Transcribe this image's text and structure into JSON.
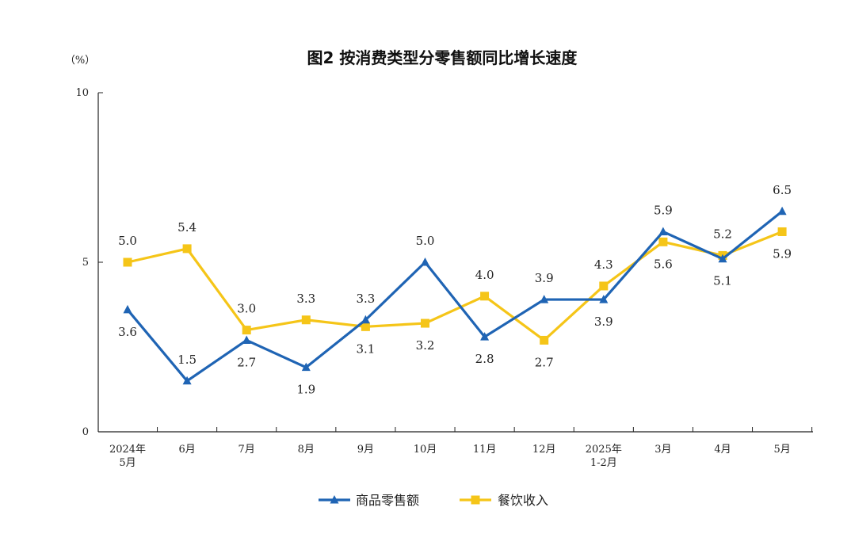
{
  "chart_data": {
    "type": "line",
    "title": "图2  按消费类型分零售额同比增长速度",
    "unit": "（%）",
    "ylim": [
      0,
      10
    ],
    "yticks": [
      "0",
      "5",
      "10"
    ],
    "grid": false,
    "legend_position": "bottom",
    "categories": [
      [
        "2024年",
        "5月"
      ],
      [
        "6月"
      ],
      [
        "7月"
      ],
      [
        "8月"
      ],
      [
        "9月"
      ],
      [
        "10月"
      ],
      [
        "11月"
      ],
      [
        "12月"
      ],
      [
        "2025年",
        "1-2月"
      ],
      [
        "3月"
      ],
      [
        "4月"
      ],
      [
        "5月"
      ]
    ],
    "series": [
      {
        "name": "商品零售额",
        "color": "#1f64b4",
        "marker": "triangle",
        "values": [
          3.6,
          1.5,
          2.7,
          1.9,
          3.3,
          5.0,
          2.8,
          3.9,
          3.9,
          5.9,
          5.1,
          6.5
        ],
        "labels": [
          "3.6",
          "1.5",
          "2.7",
          "1.9",
          "3.3",
          "5.0",
          "2.8",
          "3.9",
          "3.9",
          "5.9",
          "5.1",
          "6.5"
        ]
      },
      {
        "name": "餐饮收入",
        "color": "#f5c518",
        "marker": "square",
        "values": [
          5.0,
          5.4,
          3.0,
          3.3,
          3.1,
          3.2,
          4.0,
          2.7,
          4.3,
          5.6,
          5.2,
          5.9
        ],
        "labels": [
          "5.0",
          "5.4",
          "3.0",
          "3.3",
          "3.1",
          "3.2",
          "4.0",
          "2.7",
          "4.3",
          "5.6",
          "5.2",
          "5.9"
        ]
      }
    ]
  }
}
